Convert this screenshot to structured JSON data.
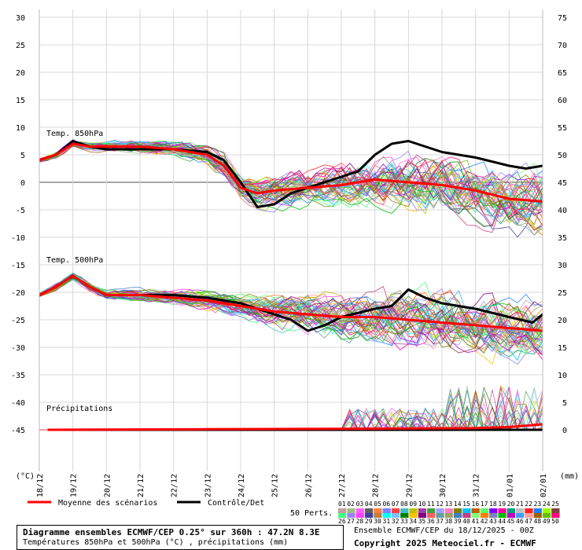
{
  "chart_data": {
    "type": "line",
    "left_unit": "(°C)",
    "right_unit": "(mm)",
    "left_ticks": [
      30,
      25,
      20,
      15,
      10,
      5,
      0,
      -5,
      -10,
      -15,
      -20,
      -25,
      -30,
      -35,
      -40,
      -45
    ],
    "right_ticks": [
      75,
      70,
      65,
      60,
      55,
      50,
      45,
      40,
      35,
      30,
      25,
      20,
      15,
      10,
      5,
      0
    ],
    "ylim_temp": [
      -50,
      30
    ],
    "ylim_precip": [
      0,
      75
    ],
    "dates": [
      "18/12",
      "19/12",
      "20/12",
      "21/12",
      "22/12",
      "23/12",
      "24/12",
      "25/12",
      "26/12",
      "27/12",
      "28/12",
      "29/12",
      "30/12",
      "31/12",
      "01/01",
      "02/01"
    ],
    "panels": [
      {
        "label": "Temp. 850hPa",
        "label_at_temp": 9
      },
      {
        "label": "Temp. 500hPa",
        "label_at_temp": -14
      },
      {
        "label": "Précipitations",
        "label_at_temp": -41
      }
    ],
    "series": [
      {
        "name": "Moyenne des scénarios",
        "color": "#ff0000",
        "t850": [
          [
            0,
            4
          ],
          [
            0.5,
            5
          ],
          [
            1,
            7
          ],
          [
            1.5,
            6.5
          ],
          [
            2,
            6.5
          ],
          [
            3,
            6.5
          ],
          [
            4,
            6
          ],
          [
            4.5,
            5.5
          ],
          [
            5,
            5
          ],
          [
            5.5,
            3
          ],
          [
            6,
            -1
          ],
          [
            6.5,
            -2
          ],
          [
            7,
            -1.5
          ],
          [
            8,
            -1
          ],
          [
            9,
            -0.5
          ],
          [
            10,
            0.5
          ],
          [
            11,
            0
          ],
          [
            12,
            -0.5
          ],
          [
            13,
            -1.5
          ],
          [
            14,
            -3
          ],
          [
            15,
            -3.5
          ]
        ],
        "t500": [
          [
            0,
            -20.5
          ],
          [
            0.5,
            -19
          ],
          [
            1,
            -17
          ],
          [
            1.5,
            -19
          ],
          [
            2,
            -20.5
          ],
          [
            3,
            -20.5
          ],
          [
            4,
            -21
          ],
          [
            5,
            -21.5
          ],
          [
            6,
            -22.5
          ],
          [
            7,
            -23.5
          ],
          [
            8,
            -24
          ],
          [
            9,
            -24.5
          ],
          [
            10,
            -24.5
          ],
          [
            11,
            -25
          ],
          [
            12,
            -25.5
          ],
          [
            13,
            -26
          ],
          [
            14,
            -26.5
          ],
          [
            15,
            -27
          ]
        ],
        "precip": [
          [
            0.25,
            0
          ],
          [
            5,
            0.1
          ],
          [
            10,
            0.2
          ],
          [
            13,
            0.3
          ],
          [
            14,
            0.5
          ],
          [
            15,
            1
          ]
        ]
      },
      {
        "name": "Contrôle/Det",
        "color": "#000000",
        "t850": [
          [
            0,
            4
          ],
          [
            0.5,
            5
          ],
          [
            1,
            7.5
          ],
          [
            1.5,
            6.5
          ],
          [
            2,
            6
          ],
          [
            3,
            6
          ],
          [
            4,
            6
          ],
          [
            5,
            5.5
          ],
          [
            5.5,
            4
          ],
          [
            6,
            0
          ],
          [
            6.5,
            -4.5
          ],
          [
            7,
            -4
          ],
          [
            7.5,
            -2
          ],
          [
            8,
            -1
          ],
          [
            9,
            1
          ],
          [
            9.5,
            2
          ],
          [
            10,
            5
          ],
          [
            10.5,
            7
          ],
          [
            11,
            7.5
          ],
          [
            11.5,
            6.5
          ],
          [
            12,
            5.5
          ],
          [
            13,
            4.5
          ],
          [
            14,
            3
          ],
          [
            14.5,
            2.5
          ],
          [
            15,
            3
          ]
        ],
        "t500": [
          [
            0,
            -20.5
          ],
          [
            0.5,
            -19
          ],
          [
            1,
            -17
          ],
          [
            1.5,
            -19
          ],
          [
            2,
            -20.5
          ],
          [
            3,
            -20.5
          ],
          [
            4,
            -20.5
          ],
          [
            5,
            -21
          ],
          [
            6,
            -22
          ],
          [
            7,
            -24
          ],
          [
            7.5,
            -25
          ],
          [
            8,
            -27
          ],
          [
            8.5,
            -26
          ],
          [
            9,
            -24.5
          ],
          [
            10,
            -23
          ],
          [
            10.5,
            -22.5
          ],
          [
            11,
            -19.5
          ],
          [
            11.5,
            -21
          ],
          [
            12,
            -22
          ],
          [
            13,
            -23
          ],
          [
            14,
            -24.5
          ],
          [
            14.7,
            -25.5
          ],
          [
            15,
            -24
          ]
        ],
        "precip": [
          [
            0.25,
            0
          ],
          [
            15,
            0
          ]
        ]
      }
    ],
    "legend_pert_label": "50 Perts.",
    "pert_numbers_row1": [
      "01",
      "02",
      "03",
      "04",
      "05",
      "06",
      "07",
      "08",
      "09",
      "10",
      "11",
      "12",
      "13",
      "14",
      "15",
      "16",
      "17",
      "18",
      "19",
      "20",
      "21",
      "22",
      "23",
      "24",
      "25"
    ],
    "pert_numbers_row2": [
      "26",
      "27",
      "28",
      "29",
      "30",
      "31",
      "32",
      "33",
      "34",
      "35",
      "36",
      "37",
      "38",
      "39",
      "40",
      "41",
      "42",
      "43",
      "44",
      "45",
      "46",
      "47",
      "48",
      "49",
      "50"
    ],
    "pert_colors": [
      "#c0a0a0",
      "#a0c080",
      "#ff60ff",
      "#606060",
      "#ff8040",
      "#8080ff",
      "#ff4040",
      "#40c0c0",
      "#c0c000",
      "#a040a0",
      "#40a040",
      "#a0a0ff",
      "#ff80c0",
      "#808000",
      "#00c0ff",
      "#c06000",
      "#60ff60",
      "#8000ff",
      "#ff00a0",
      "#00a080",
      "#c0c0c0",
      "#ff2020",
      "#2080ff",
      "#a0ff00",
      "#804040",
      "#40ff80",
      "#a080ff",
      "#ff40ff",
      "#4040a0",
      "#c08040",
      "#00ffff",
      "#80c0ff",
      "#008000",
      "#ffc000",
      "#800080",
      "#ff6060",
      "#60a0a0",
      "#a0a060",
      "#4080c0",
      "#c04080",
      "#80ff80",
      "#ff8000",
      "#8080c0",
      "#00c000",
      "#c000c0",
      "#40a0ff",
      "#ffa0a0",
      "#a06000",
      "#60c000",
      "#ff0080"
    ]
  },
  "info": {
    "line1": "Diagramme ensembles ECMWF/CEP 0.25° sur 360h : 47.2N 8.3E",
    "line2": "Températures 850hPa et 500hPa (°C) , précipitations (mm)",
    "run": "Ensemble ECMWF/CEP du 18/12/2025 - 00Z",
    "copyright": "Copyright 2025 Meteociel.fr - ECMWF"
  }
}
